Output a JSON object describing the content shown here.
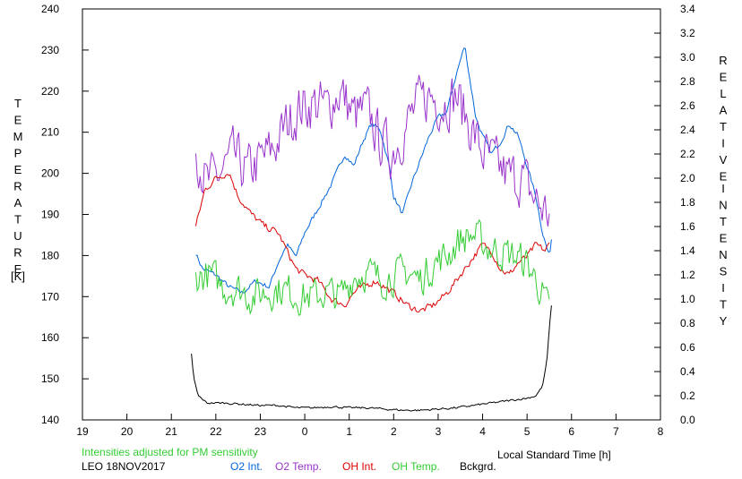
{
  "chart_data": {
    "type": "line",
    "x_axis": {
      "label": "Local Standard Time [h]",
      "range": [
        19,
        32
      ],
      "tick_labels": [
        "19",
        "20",
        "21",
        "22",
        "23",
        "0",
        "1",
        "2",
        "3",
        "4",
        "5",
        "6",
        "7",
        "8"
      ]
    },
    "y_left": {
      "label_letters": [
        "T",
        "E",
        "M",
        "P",
        "E",
        "R",
        "A",
        "T",
        "U",
        "R",
        "E"
      ],
      "unit": "[K]",
      "range": [
        140,
        240
      ],
      "tick_labels": [
        "140",
        "150",
        "160",
        "170",
        "180",
        "190",
        "200",
        "210",
        "220",
        "230",
        "240"
      ]
    },
    "y_right": {
      "label1_letters": [
        "R",
        "E",
        "L",
        "A",
        "T",
        "I",
        "V",
        "E"
      ],
      "label2_letters": [
        "I",
        "N",
        "T",
        "E",
        "N",
        "S",
        "I",
        "T",
        "Y"
      ],
      "range": [
        0,
        3.4
      ],
      "tick_labels": [
        "0.0",
        "0.2",
        "0.4",
        "0.6",
        "0.8",
        "1.0",
        "1.2",
        "1.4",
        "1.6",
        "1.8",
        "2.0",
        "2.2",
        "2.4",
        "2.6",
        "2.8",
        "3.0",
        "3.2",
        "3.4"
      ]
    },
    "grid": false,
    "series": [
      {
        "name": "O2 Int.",
        "axis": "right",
        "color": "#0066dd",
        "noise": 0.03,
        "points": [
          [
            21.55,
            1.38
          ],
          [
            21.7,
            1.25
          ],
          [
            22.0,
            1.2
          ],
          [
            22.3,
            1.1
          ],
          [
            22.6,
            1.05
          ],
          [
            22.9,
            1.15
          ],
          [
            23.2,
            1.1
          ],
          [
            23.4,
            1.3
          ],
          [
            23.6,
            1.45
          ],
          [
            23.8,
            1.35
          ],
          [
            24.0,
            1.55
          ],
          [
            24.3,
            1.75
          ],
          [
            24.6,
            1.95
          ],
          [
            24.9,
            2.2
          ],
          [
            25.1,
            2.1
          ],
          [
            25.3,
            2.3
          ],
          [
            25.5,
            2.45
          ],
          [
            25.7,
            2.4
          ],
          [
            25.9,
            2.1
          ],
          [
            26.0,
            1.85
          ],
          [
            26.2,
            1.7
          ],
          [
            26.4,
            1.95
          ],
          [
            26.6,
            2.15
          ],
          [
            26.8,
            2.35
          ],
          [
            27.0,
            2.5
          ],
          [
            27.2,
            2.55
          ],
          [
            27.4,
            2.85
          ],
          [
            27.6,
            3.1
          ],
          [
            27.7,
            2.85
          ],
          [
            27.85,
            2.5
          ],
          [
            28.0,
            2.35
          ],
          [
            28.2,
            2.2
          ],
          [
            28.4,
            2.3
          ],
          [
            28.6,
            2.45
          ],
          [
            28.8,
            2.35
          ],
          [
            29.0,
            2.1
          ],
          [
            29.2,
            1.85
          ],
          [
            29.35,
            1.55
          ],
          [
            29.5,
            1.35
          ],
          [
            29.55,
            1.5
          ]
        ]
      },
      {
        "name": "O2 Temp.",
        "axis": "left",
        "color": "#9933cc",
        "noise": 9,
        "points": [
          [
            21.55,
            207
          ],
          [
            21.8,
            197
          ],
          [
            22.1,
            200
          ],
          [
            22.4,
            204
          ],
          [
            22.7,
            200
          ],
          [
            23.0,
            203
          ],
          [
            23.3,
            206
          ],
          [
            23.6,
            212
          ],
          [
            23.9,
            216
          ],
          [
            24.2,
            217
          ],
          [
            24.5,
            216
          ],
          [
            24.8,
            220
          ],
          [
            25.1,
            214
          ],
          [
            25.4,
            215
          ],
          [
            25.7,
            208
          ],
          [
            25.95,
            205
          ],
          [
            26.2,
            210
          ],
          [
            26.5,
            216
          ],
          [
            26.8,
            219
          ],
          [
            27.1,
            217
          ],
          [
            27.4,
            219
          ],
          [
            27.7,
            212
          ],
          [
            28.0,
            205
          ],
          [
            28.3,
            202
          ],
          [
            28.6,
            199
          ],
          [
            28.9,
            199
          ],
          [
            29.1,
            195
          ],
          [
            29.3,
            192
          ],
          [
            29.5,
            190
          ]
        ]
      },
      {
        "name": "OH Int.",
        "axis": "right",
        "color": "#dd0000",
        "noise": 0.04,
        "points": [
          [
            21.55,
            1.6
          ],
          [
            21.75,
            1.9
          ],
          [
            22.0,
            2.0
          ],
          [
            22.3,
            2.05
          ],
          [
            22.5,
            1.85
          ],
          [
            22.8,
            1.7
          ],
          [
            23.1,
            1.6
          ],
          [
            23.4,
            1.55
          ],
          [
            23.6,
            1.4
          ],
          [
            23.8,
            1.25
          ],
          [
            24.0,
            1.2
          ],
          [
            24.3,
            1.15
          ],
          [
            24.6,
            1.0
          ],
          [
            24.9,
            0.95
          ],
          [
            25.1,
            1.05
          ],
          [
            25.3,
            1.1
          ],
          [
            25.6,
            1.15
          ],
          [
            25.8,
            1.1
          ],
          [
            26.0,
            1.05
          ],
          [
            26.3,
            0.95
          ],
          [
            26.6,
            0.9
          ],
          [
            26.9,
            0.95
          ],
          [
            27.2,
            1.05
          ],
          [
            27.5,
            1.2
          ],
          [
            27.8,
            1.35
          ],
          [
            28.0,
            1.45
          ],
          [
            28.2,
            1.4
          ],
          [
            28.4,
            1.25
          ],
          [
            28.6,
            1.2
          ],
          [
            28.8,
            1.3
          ],
          [
            29.0,
            1.35
          ],
          [
            29.2,
            1.45
          ],
          [
            29.4,
            1.4
          ],
          [
            29.5,
            1.45
          ]
        ]
      },
      {
        "name": "OH Temp.",
        "axis": "left",
        "color": "#33cc33",
        "noise": 6,
        "points": [
          [
            21.55,
            175
          ],
          [
            21.9,
            175
          ],
          [
            22.2,
            172
          ],
          [
            22.5,
            172
          ],
          [
            22.8,
            170
          ],
          [
            23.1,
            171
          ],
          [
            23.5,
            172
          ],
          [
            23.9,
            170
          ],
          [
            24.2,
            170
          ],
          [
            24.5,
            171
          ],
          [
            24.8,
            170
          ],
          [
            25.1,
            175
          ],
          [
            25.4,
            176
          ],
          [
            25.7,
            174
          ],
          [
            26.0,
            175
          ],
          [
            26.3,
            176
          ],
          [
            26.6,
            174
          ],
          [
            26.9,
            178
          ],
          [
            27.2,
            180
          ],
          [
            27.5,
            184
          ],
          [
            27.8,
            185
          ],
          [
            28.1,
            182
          ],
          [
            28.4,
            181
          ],
          [
            28.7,
            180
          ],
          [
            29.0,
            178
          ],
          [
            29.3,
            172
          ],
          [
            29.5,
            166
          ]
        ]
      },
      {
        "name": "Bckgrd.",
        "axis": "right",
        "color": "#000000",
        "noise": 0.012,
        "points": [
          [
            21.45,
            0.55
          ],
          [
            21.5,
            0.35
          ],
          [
            21.6,
            0.2
          ],
          [
            21.8,
            0.14
          ],
          [
            22.2,
            0.14
          ],
          [
            22.6,
            0.13
          ],
          [
            23.0,
            0.12
          ],
          [
            23.4,
            0.12
          ],
          [
            23.8,
            0.1
          ],
          [
            24.2,
            0.1
          ],
          [
            24.6,
            0.11
          ],
          [
            25.0,
            0.1
          ],
          [
            25.4,
            0.1
          ],
          [
            25.8,
            0.09
          ],
          [
            26.2,
            0.08
          ],
          [
            26.6,
            0.08
          ],
          [
            27.0,
            0.09
          ],
          [
            27.4,
            0.1
          ],
          [
            27.8,
            0.12
          ],
          [
            28.2,
            0.14
          ],
          [
            28.6,
            0.16
          ],
          [
            29.0,
            0.18
          ],
          [
            29.2,
            0.2
          ],
          [
            29.35,
            0.28
          ],
          [
            29.45,
            0.5
          ],
          [
            29.5,
            0.75
          ],
          [
            29.55,
            0.95
          ]
        ]
      }
    ]
  },
  "footer": {
    "note": "Intensities adjusted for PM sensitivity",
    "station": "LEO 18NOV2017",
    "legend": [
      "O2 Int.",
      "O2 Temp.",
      "OH Int.",
      "OH Temp.",
      "Bckgrd."
    ]
  }
}
